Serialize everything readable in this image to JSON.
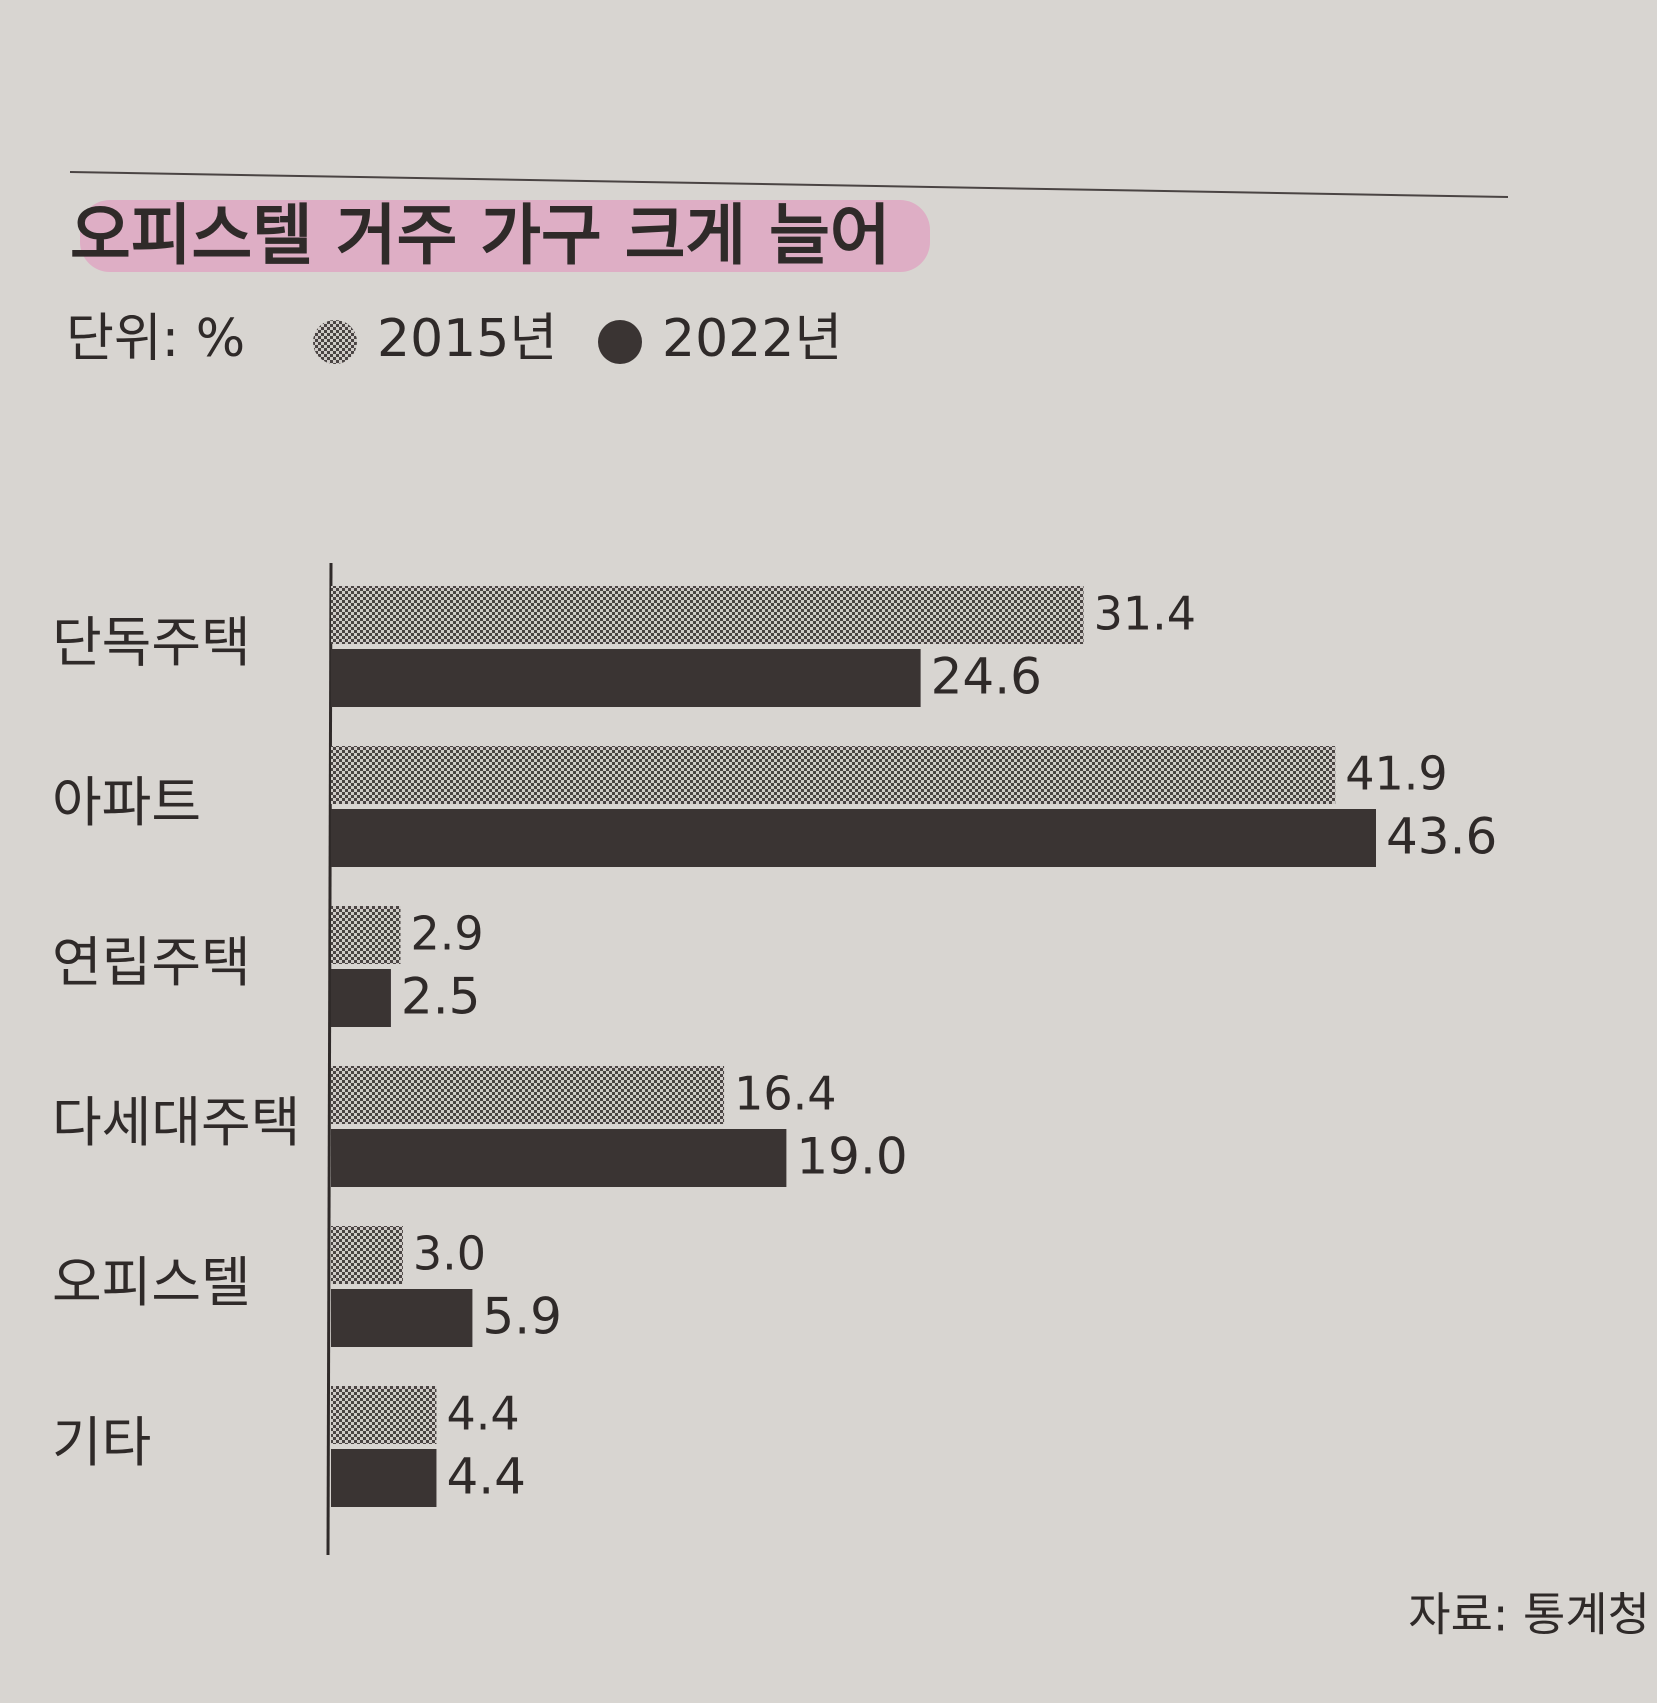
{
  "chart_data": {
    "type": "hbar",
    "title": "오피스텔 거주 가구 크게 늘어",
    "unit_label": "단위: %",
    "source": "자료: 통계청",
    "categories": [
      "단독주택",
      "아파트",
      "연립주택",
      "다세대주택",
      "오피스텔",
      "기타"
    ],
    "series": [
      {
        "name": "2015년",
        "color": "#5a5453",
        "hatch": true,
        "values": [
          31.4,
          41.9,
          2.9,
          16.4,
          3.0,
          4.4
        ],
        "value_labels": [
          "31.4",
          "41.9",
          "2.9",
          "16.4",
          "3.0",
          "4.4"
        ]
      },
      {
        "name": "2022년",
        "color": "#3a3433",
        "hatch": false,
        "values": [
          24.6,
          43.6,
          2.5,
          19.0,
          5.9,
          4.4
        ],
        "value_labels": [
          "24.6",
          "43.6",
          "2.5",
          "19.0",
          "5.9",
          "4.4"
        ]
      }
    ]
  }
}
